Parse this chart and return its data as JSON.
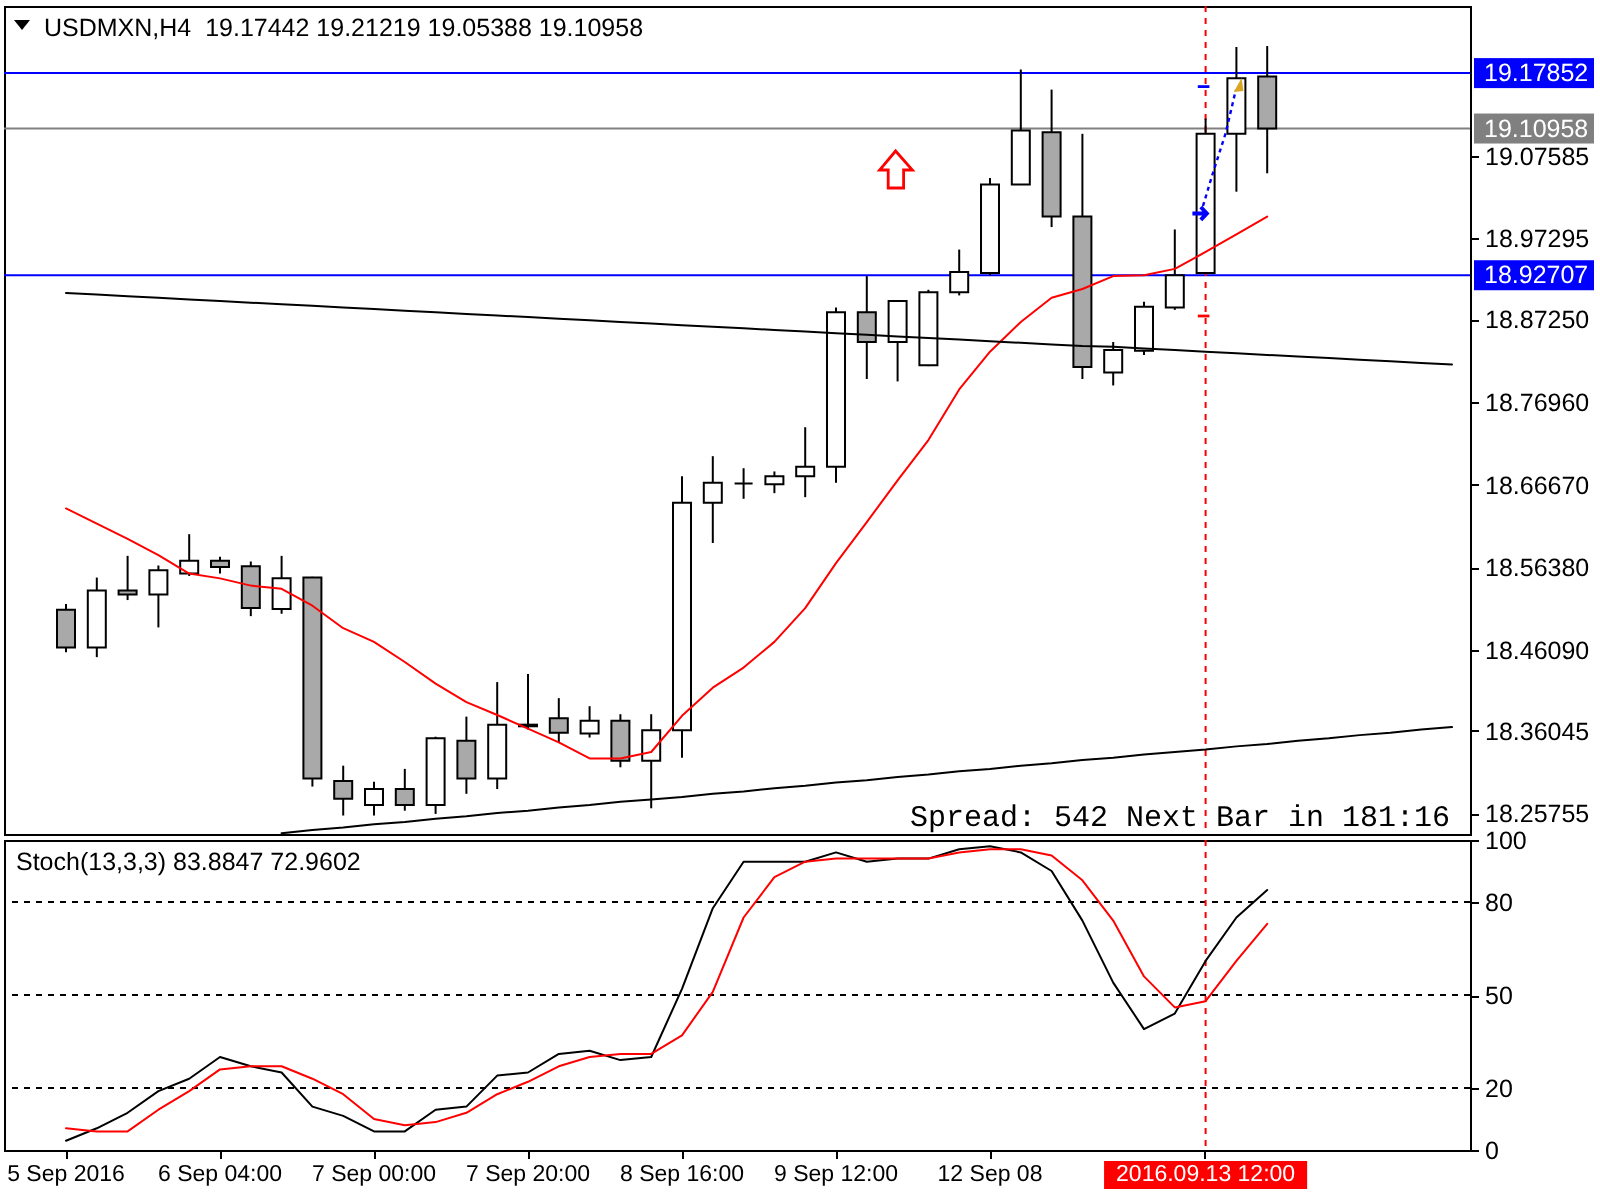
{
  "chart_data": [
    {
      "type": "candlestick",
      "title": "USDMXN,H4  19.17442 19.21219 19.05388 19.10958",
      "categories": [
        "5 Sep 2016",
        null,
        null,
        null,
        null,
        "6 Sep 04:00",
        null,
        null,
        null,
        null,
        "7 Sep 00:00",
        null,
        null,
        null,
        null,
        "7 Sep 20:00",
        null,
        null,
        null,
        null,
        "8 Sep 16:00",
        null,
        null,
        null,
        null,
        "9 Sep 12:00",
        null,
        null,
        null,
        null,
        "12 Sep 08",
        null,
        null,
        null,
        null,
        null,
        null,
        "2016.09.13 12:00",
        null,
        null,
        null,
        null,
        null,
        null,
        null,
        null
      ],
      "ohlc": [
        [
          18.511,
          18.518,
          18.458,
          18.464
        ],
        [
          18.464,
          18.551,
          18.452,
          18.535
        ],
        [
          18.535,
          18.578,
          18.523,
          18.53
        ],
        [
          18.53,
          18.566,
          18.489,
          18.56
        ],
        [
          18.556,
          18.605,
          18.553,
          18.572
        ],
        [
          18.572,
          18.577,
          18.556,
          18.564
        ],
        [
          18.565,
          18.571,
          18.503,
          18.513
        ],
        [
          18.512,
          18.578,
          18.506,
          18.55
        ],
        [
          18.551,
          18.552,
          18.291,
          18.301
        ],
        [
          18.298,
          18.317,
          18.255,
          18.276
        ],
        [
          18.268,
          18.297,
          18.255,
          18.288
        ],
        [
          18.288,
          18.313,
          18.261,
          18.268
        ],
        [
          18.268,
          18.353,
          18.257,
          18.351
        ],
        [
          18.348,
          18.378,
          18.282,
          18.301
        ],
        [
          18.301,
          18.421,
          18.288,
          18.368
        ],
        [
          18.368,
          18.431,
          18.362,
          18.366
        ],
        [
          18.376,
          18.401,
          18.346,
          18.358
        ],
        [
          18.357,
          18.391,
          18.352,
          18.373
        ],
        [
          18.373,
          18.381,
          18.315,
          18.323
        ],
        [
          18.323,
          18.381,
          18.264,
          18.361
        ],
        [
          18.361,
          18.677,
          18.327,
          18.644
        ],
        [
          18.644,
          18.702,
          18.594,
          18.669
        ],
        [
          18.668,
          18.687,
          18.649,
          18.668
        ],
        [
          18.667,
          18.683,
          18.656,
          18.677
        ],
        [
          18.677,
          18.738,
          18.651,
          18.689
        ],
        [
          18.689,
          18.887,
          18.669,
          18.881
        ],
        [
          18.881,
          18.926,
          18.798,
          18.844
        ],
        [
          18.844,
          18.895,
          18.795,
          18.895
        ],
        [
          18.815,
          18.909,
          18.814,
          18.906
        ],
        [
          18.906,
          18.959,
          18.902,
          18.931
        ],
        [
          18.93,
          19.048,
          18.927,
          19.04
        ],
        [
          19.04,
          19.183,
          19.04,
          19.107
        ],
        [
          19.105,
          19.158,
          18.987,
          19.0
        ],
        [
          19.0,
          19.103,
          18.798,
          18.813
        ],
        [
          18.806,
          18.844,
          18.79,
          18.834
        ],
        [
          18.833,
          18.894,
          18.828,
          18.888
        ],
        [
          18.887,
          18.984,
          18.884,
          18.927
        ],
        [
          18.93,
          19.122,
          18.93,
          19.103
        ],
        [
          19.103,
          19.211,
          19.031,
          19.172
        ],
        [
          19.17442,
          19.21219,
          19.05388,
          19.10958
        ],
        null,
        null,
        null,
        null,
        null,
        null
      ],
      "colors": [
        "#a9a9a9",
        "#ffffff",
        "#a9a9a9",
        "#ffffff",
        "#ffffff",
        "#a9a9a9",
        "#a9a9a9",
        "#ffffff",
        "#a9a9a9",
        "#a9a9a9",
        "#ffffff",
        "#a9a9a9",
        "#ffffff",
        "#a9a9a9",
        "#ffffff",
        "#a9a9a9",
        "#a9a9a9",
        "#ffffff",
        "#a9a9a9",
        "#ffffff",
        "#ffffff",
        "#ffffff",
        "#000000",
        "#ffffff",
        "#ffffff",
        "#ffffff",
        "#a9a9a9",
        "#ffffff",
        "#ffffff",
        "#ffffff",
        "#ffffff",
        "#ffffff",
        "#a9a9a9",
        "#a9a9a9",
        "#ffffff",
        "#ffffff",
        "#ffffff",
        "#ffffff",
        "#ffffff",
        "#a9a9a9",
        null,
        null,
        null,
        null,
        null,
        null
      ],
      "series": [
        {
          "type": "line",
          "color": "#ff0000",
          "values": [
            18.637,
            18.618,
            18.599,
            18.579,
            18.556,
            18.55,
            18.541,
            18.537,
            18.516,
            18.488,
            18.471,
            18.446,
            18.419,
            18.396,
            18.38,
            18.363,
            18.346,
            18.326,
            18.326,
            18.334,
            18.379,
            18.414,
            18.439,
            18.471,
            18.513,
            18.569,
            18.62,
            18.672,
            18.722,
            18.785,
            18.832,
            18.869,
            18.899,
            18.91,
            18.926,
            18.927,
            18.935,
            18.956,
            18.978,
            19.0,
            null,
            null,
            null,
            null,
            null,
            null
          ]
        },
        {
          "type": "line",
          "color": "#000000",
          "values": [
            18.905,
            18.903,
            18.901,
            18.899,
            18.897,
            18.895,
            18.893,
            18.891,
            18.889,
            18.887,
            18.885,
            18.883,
            18.881,
            18.879,
            18.877,
            18.875,
            18.873,
            18.871,
            18.869,
            18.867,
            18.865,
            18.863,
            18.861,
            18.859,
            18.857,
            18.855,
            18.853,
            18.851,
            18.849,
            18.847,
            18.845,
            18.843,
            18.841,
            18.839,
            18.838,
            18.836,
            18.834,
            18.832,
            18.83,
            18.828,
            18.826,
            18.824,
            18.822,
            18.82,
            18.818,
            18.816
          ]
        },
        {
          "type": "line",
          "color": "#000000",
          "values": [
            null,
            null,
            null,
            null,
            null,
            null,
            null,
            18.233,
            18.237,
            18.24,
            18.244,
            18.247,
            18.251,
            18.254,
            18.258,
            18.261,
            18.265,
            18.268,
            18.272,
            18.275,
            18.278,
            18.282,
            18.285,
            18.289,
            18.292,
            18.296,
            18.299,
            18.303,
            18.306,
            18.31,
            18.313,
            18.317,
            18.32,
            18.324,
            18.327,
            18.331,
            18.334,
            18.337,
            18.341,
            18.344,
            18.348,
            18.351,
            18.355,
            18.358,
            18.362,
            18.365
          ]
        }
      ],
      "ylim": [
        18.232,
        19.262
      ],
      "yticks": [
        18.25755,
        18.36045,
        {
          "value": 18.4609,
          "label": "18.46090"
        },
        {
          "value": 18.5638,
          "label": "18.56380"
        },
        {
          "value": 18.6667,
          "label": "18.66670"
        },
        {
          "value": 18.7696,
          "label": "18.76960"
        },
        {
          "value": 18.8725,
          "label": "18.87250"
        },
        18.97295,
        19.07585
      ],
      "ref_lines": [
        {
          "axis": "y",
          "value": 19.17852,
          "label": "19.17852",
          "color": "#0000ff"
        },
        {
          "axis": "y",
          "value": 19.10958,
          "label": "19.10958",
          "color": "#808080"
        },
        {
          "axis": "y",
          "value": 18.92707,
          "label": "18.92707",
          "color": "#0000ff"
        },
        {
          "axis": "x",
          "value": "2016.09.13 12:00",
          "color": "#ff0000",
          "line_style": "dashed"
        }
      ],
      "annotations": [
        "Spread: 542 Next Bar in 181:16"
      ],
      "tick_labels": "y"
    },
    {
      "type": "line",
      "title": "Stoch(13,3,3) 83.8847 72.9602",
      "categories": [
        "5 Sep 2016",
        null,
        null,
        null,
        null,
        "6 Sep 04:00",
        null,
        null,
        null,
        null,
        "7 Sep 00:00",
        null,
        null,
        null,
        null,
        "7 Sep 20:00",
        null,
        null,
        null,
        null,
        "8 Sep 16:00",
        null,
        null,
        null,
        null,
        "9 Sep 12:00",
        null,
        null,
        null,
        null,
        "12 Sep 08",
        null,
        null,
        null,
        null,
        null,
        null,
        "2016.09.13 12:00",
        null,
        null,
        null,
        null,
        null,
        null,
        null,
        null
      ],
      "series": [
        {
          "color": "#000000",
          "values": [
            3,
            7,
            12,
            19,
            23,
            30,
            27,
            25,
            14,
            11,
            6,
            6,
            13,
            14,
            24,
            25,
            31,
            32,
            29,
            30,
            52,
            78,
            93,
            93,
            93,
            96,
            93,
            94,
            94,
            97,
            98,
            96,
            90,
            74,
            54,
            39,
            44,
            61,
            75,
            83.8847,
            null,
            null,
            null,
            null,
            null,
            null
          ]
        },
        {
          "color": "#ff0000",
          "values": [
            7,
            6,
            6,
            13,
            19,
            26,
            27,
            27,
            23,
            18,
            10,
            8,
            9,
            12,
            18,
            22,
            27,
            30,
            31,
            31,
            37,
            51,
            75,
            88,
            93,
            94,
            94,
            94,
            94,
            96,
            97,
            97,
            95,
            87,
            74,
            56,
            46,
            48,
            61,
            72.9602,
            null,
            null,
            null,
            null,
            null,
            null
          ]
        }
      ],
      "ylim": [
        0,
        100
      ],
      "yticks": [
        0,
        20,
        50,
        80,
        100
      ],
      "ref_lines": [
        {
          "axis": "y",
          "value": 80,
          "color": "#000000",
          "line_style": "dashed"
        },
        {
          "axis": "y",
          "value": 50,
          "color": "#000000",
          "line_style": "dashed"
        },
        {
          "axis": "y",
          "value": 20,
          "color": "#000000",
          "line_style": "dashed"
        },
        {
          "axis": "x",
          "value": "2016.09.13 12:00",
          "color": "#ff0000",
          "line_style": "dashed"
        }
      ]
    }
  ]
}
